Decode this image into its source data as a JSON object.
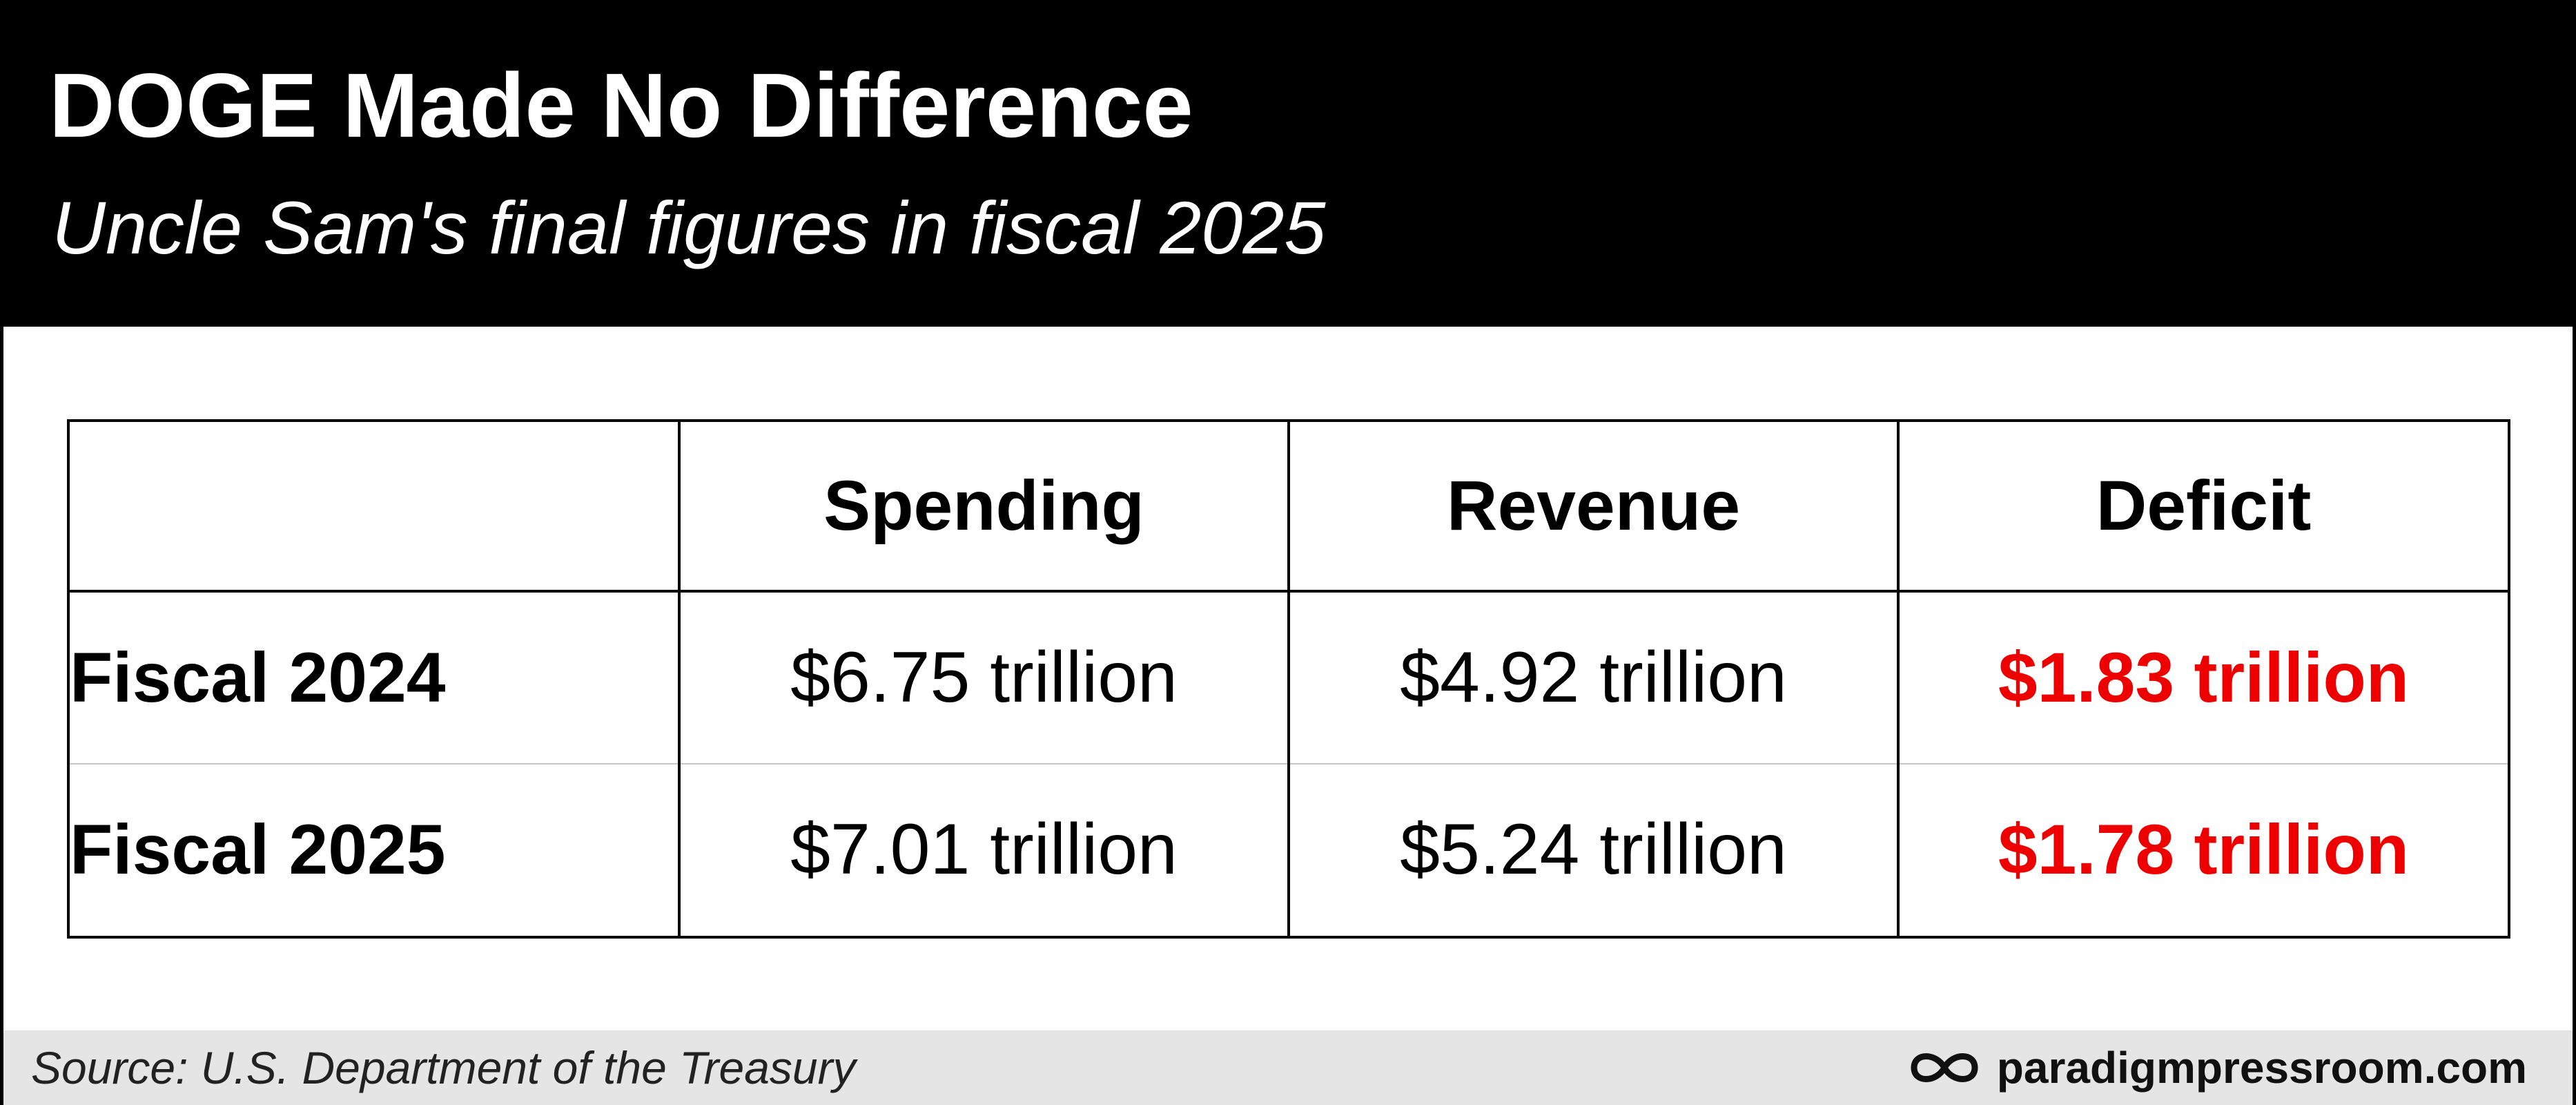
{
  "header": {
    "title": "DOGE Made No Difference",
    "subtitle": "Uncle Sam's final figures in fiscal 2025"
  },
  "chart_data": {
    "type": "table",
    "title": "DOGE Made No Difference",
    "subtitle": "Uncle Sam's final figures in fiscal 2025",
    "columns": [
      "",
      "Spending",
      "Revenue",
      "Deficit"
    ],
    "rows": [
      {
        "label": "Fiscal 2024",
        "spending": "$6.75 trillion",
        "revenue": "$4.92 trillion",
        "deficit": "$1.83 trillion"
      },
      {
        "label": "Fiscal 2025",
        "spending": "$7.01 trillion",
        "revenue": "$5.24 trillion",
        "deficit": "$1.78 trillion"
      }
    ],
    "values": {
      "spending": [
        6.75,
        7.01
      ],
      "revenue": [
        4.92,
        5.24
      ],
      "deficit": [
        1.83,
        1.78
      ]
    }
  },
  "footer": {
    "source": "Source: U.S. Department of the Treasury",
    "brand": "paradigmpressroom.com",
    "brand_icon": "infinity-icon"
  },
  "colors": {
    "header_bg": "#000000",
    "deficit_text": "#ee0000",
    "footer_bg": "#e5e5e5"
  }
}
